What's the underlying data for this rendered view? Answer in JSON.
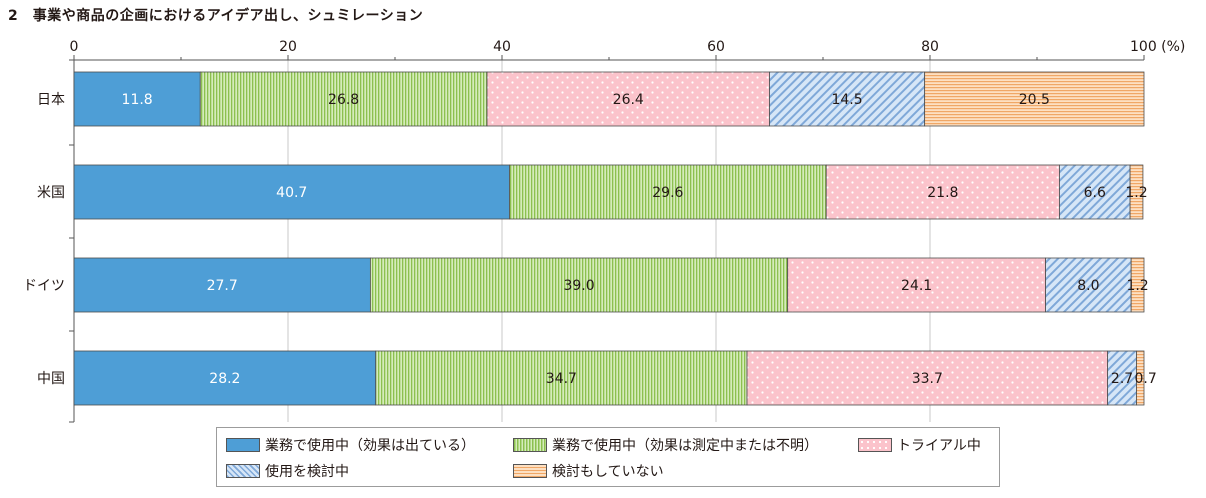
{
  "title": "2　事業や商品の企画におけるアイデア出し、シュミレーション",
  "chart_data": {
    "type": "bar",
    "orientation": "horizontal",
    "stacked": true,
    "categories": [
      "日本",
      "米国",
      "ドイツ",
      "中国"
    ],
    "series": [
      {
        "name": "業務で使用中（効果は出ている）",
        "values": [
          11.8,
          40.7,
          27.7,
          28.2
        ],
        "color": "#4e9ed6"
      },
      {
        "name": "業務で使用中（効果は測定中または不明）",
        "values": [
          26.8,
          29.6,
          39.0,
          34.7
        ],
        "color": "#b8e08c"
      },
      {
        "name": "トライアル中",
        "values": [
          26.4,
          21.8,
          24.1,
          33.7
        ],
        "color": "#fbc4cc"
      },
      {
        "name": "使用を検討中",
        "values": [
          14.5,
          6.6,
          8.0,
          2.7
        ],
        "color": "#c6daf1"
      },
      {
        "name": "検討もしていない",
        "values": [
          20.5,
          1.2,
          1.2,
          0.7
        ],
        "color": "#fbcb9f"
      }
    ],
    "labels": [
      [
        "11.8",
        "40.7",
        "27.7",
        "28.2"
      ],
      [
        "26.8",
        "29.6",
        "39.0",
        "34.7"
      ],
      [
        "26.4",
        "21.8",
        "24.1",
        "33.7"
      ],
      [
        "14.5",
        "6.6",
        "8.0",
        "2.7"
      ],
      [
        "20.5",
        "1.2",
        "1.2",
        "0.7"
      ]
    ],
    "xlim": [
      0,
      100
    ],
    "xticks": [
      "0",
      "20",
      "40",
      "60",
      "80",
      "100 (%)"
    ],
    "legend_position": "bottom",
    "grid": true
  }
}
